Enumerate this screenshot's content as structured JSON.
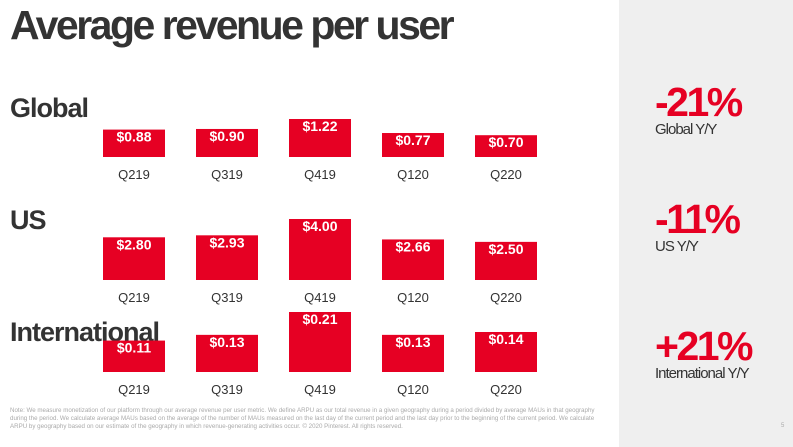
{
  "title": "Average revenue per user",
  "sidebar": {
    "kpis": [
      {
        "value": "-21%",
        "label": "Global Y/Y"
      },
      {
        "value": "-11%",
        "label": "US Y/Y"
      },
      {
        "value": "+21%",
        "label": "International Y/Y"
      }
    ]
  },
  "footnote": "Note: We measure monetization of our platform through our average revenue per user metric. We define ARPU as our total revenue in a given geography during a period divided by average MAUs in that geography during the period. We calculate average MAUs based on the average of the number of MAUs measured on the last day of the current period and the last day prior to the beginning of the current period. We calculate ARPU by geography based on our estimate of the geography in which revenue-generating activities occur. © 2020 Pinterest. All rights reserved.",
  "page_number": "5",
  "colors": {
    "bar": "#e60023",
    "accent": "#e60023",
    "text": "#333333",
    "sidebar_bg": "#efefef"
  },
  "chart_data": [
    {
      "type": "bar",
      "title": "Global",
      "categories": [
        "Q219",
        "Q319",
        "Q419",
        "Q120",
        "Q220"
      ],
      "values": [
        0.88,
        0.9,
        1.22,
        0.77,
        0.7
      ],
      "data_labels": [
        "$0.88",
        "$0.90",
        "$1.22",
        "$0.77",
        "$0.70"
      ]
    },
    {
      "type": "bar",
      "title": "US",
      "categories": [
        "Q219",
        "Q319",
        "Q419",
        "Q120",
        "Q220"
      ],
      "values": [
        2.8,
        2.93,
        4.0,
        2.66,
        2.5
      ],
      "data_labels": [
        "$2.80",
        "$2.93",
        "$4.00",
        "$2.66",
        "$2.50"
      ]
    },
    {
      "type": "bar",
      "title": "International",
      "categories": [
        "Q219",
        "Q319",
        "Q419",
        "Q120",
        "Q220"
      ],
      "values": [
        0.11,
        0.13,
        0.21,
        0.13,
        0.14
      ],
      "data_labels": [
        "$0.11",
        "$0.13",
        "$0.21",
        "$0.13",
        "$0.14"
      ]
    }
  ]
}
